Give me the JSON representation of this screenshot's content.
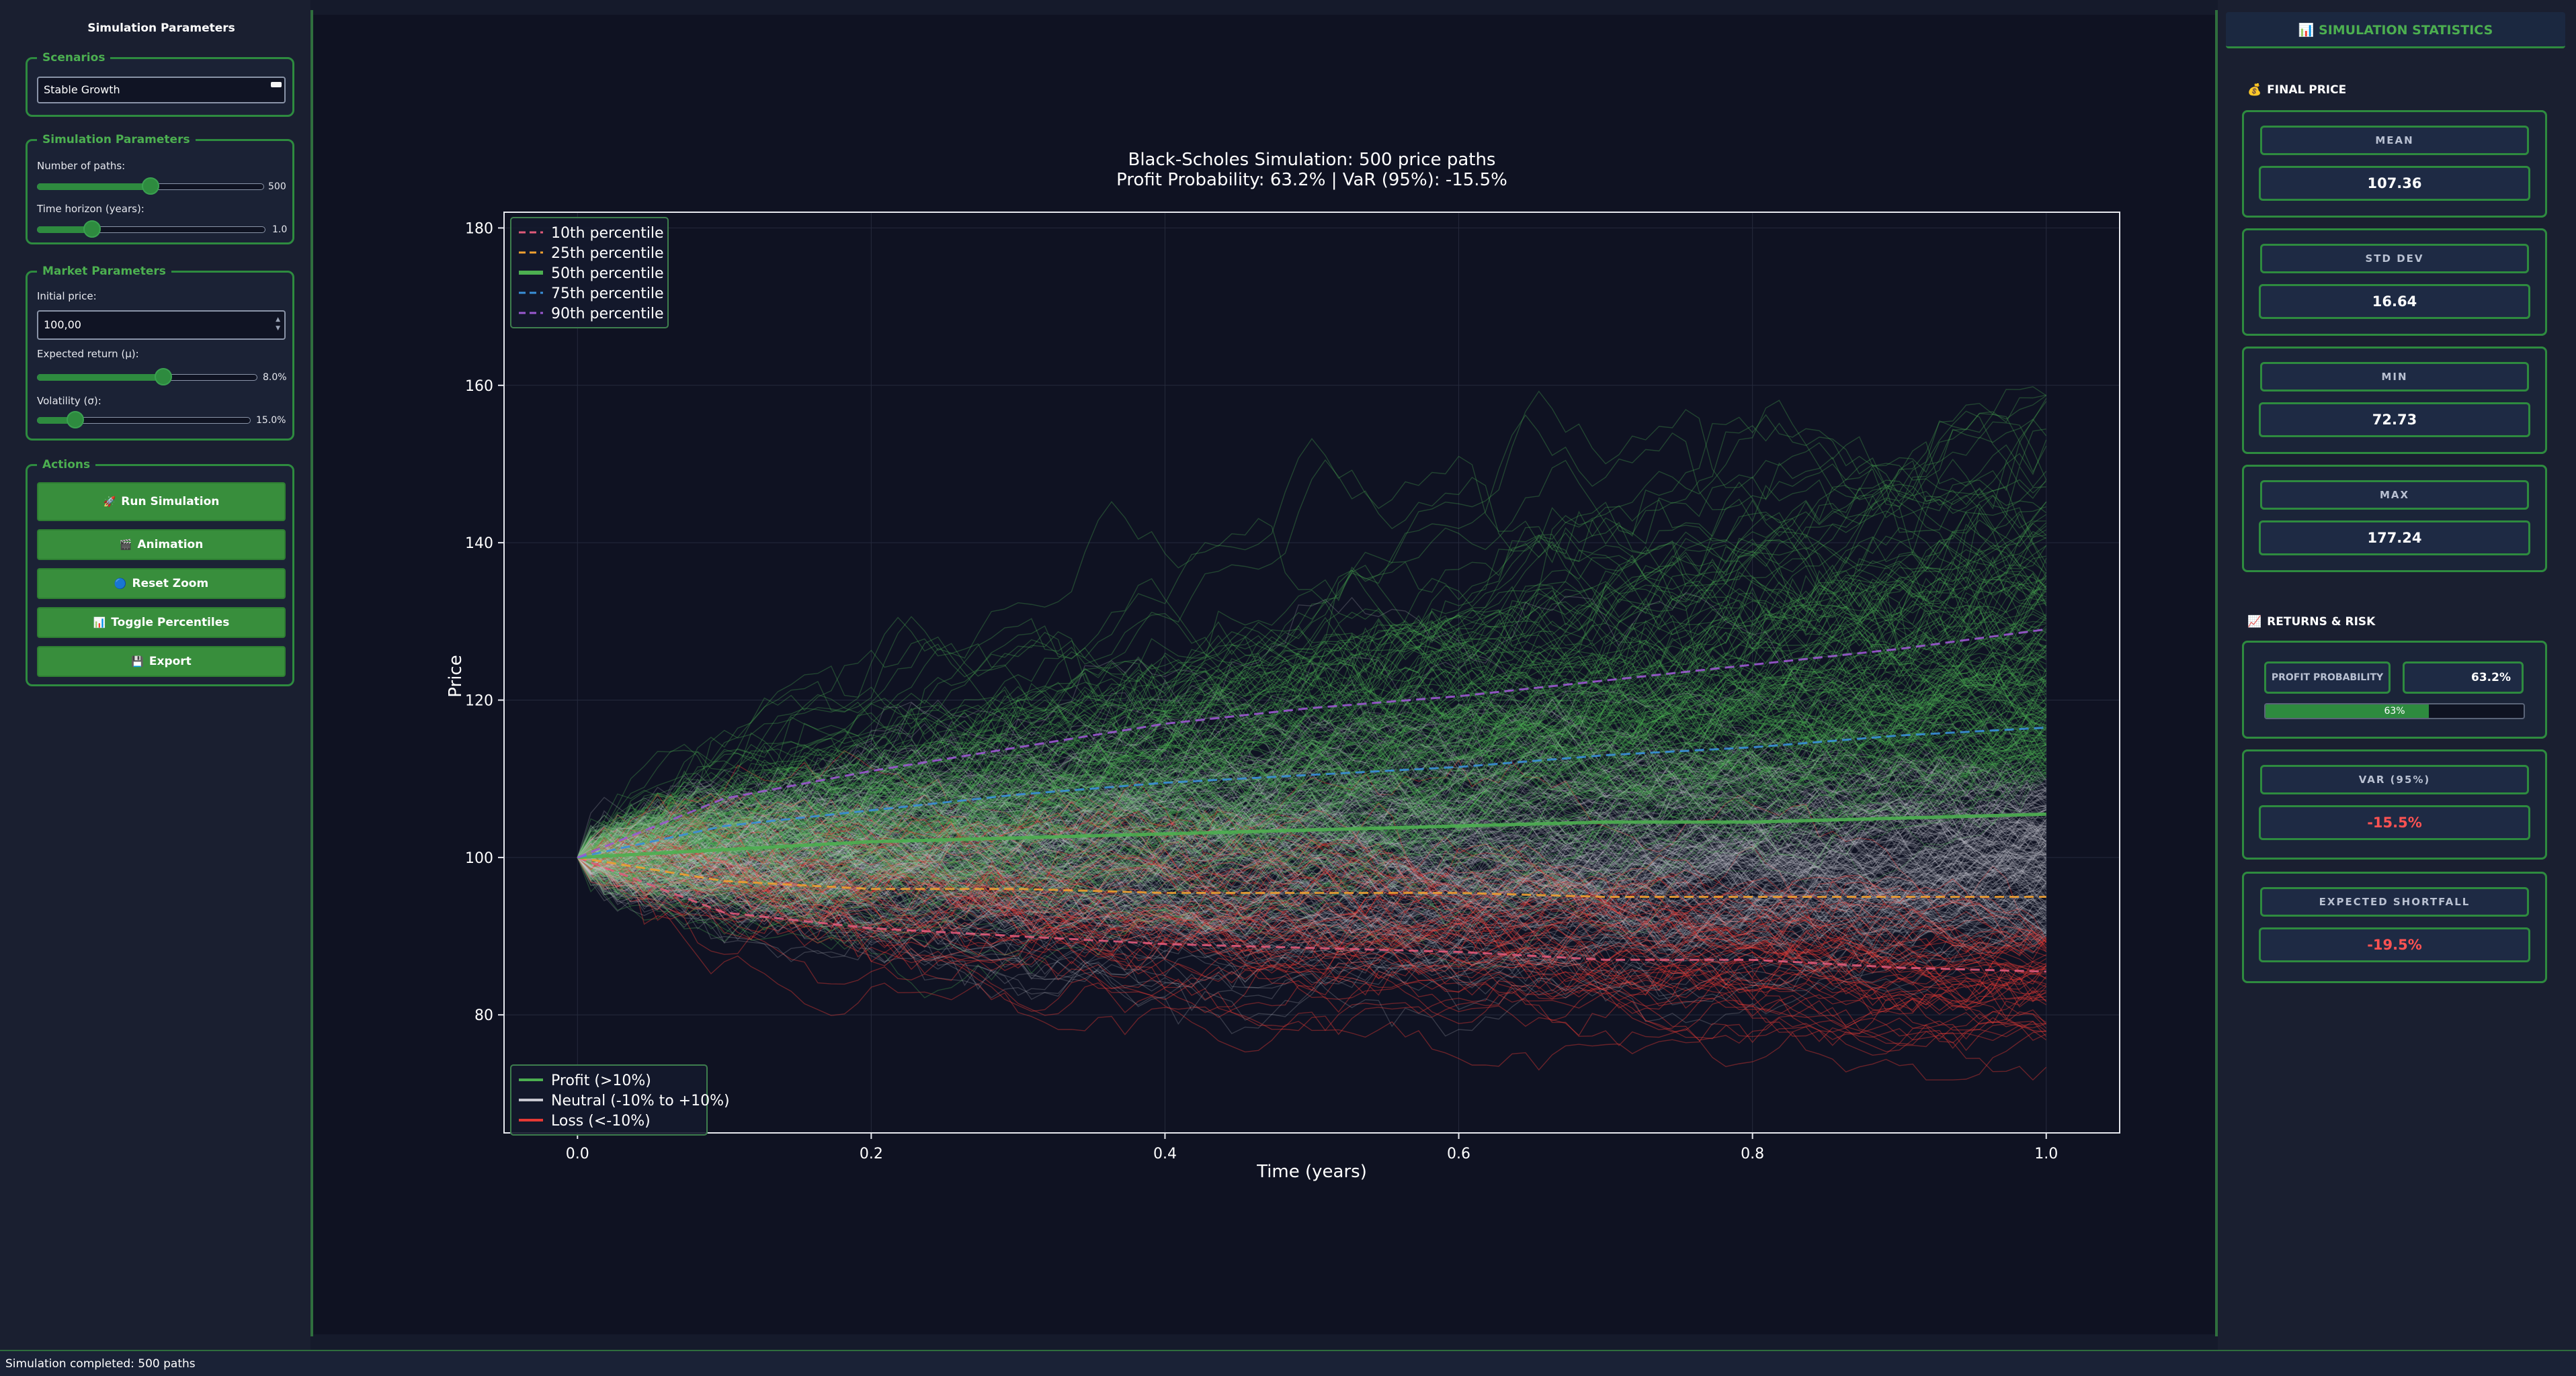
{
  "left_panel": {
    "title": "Simulation Parameters",
    "scenarios": {
      "legend": "Scenarios",
      "selected": "Stable Growth"
    },
    "simulation": {
      "legend": "Simulation Parameters",
      "paths_label": "Number of paths:",
      "paths_value": "500",
      "paths_fraction": 0.5,
      "horizon_label": "Time horizon (years):",
      "horizon_value": "1.0",
      "horizon_fraction": 0.22
    },
    "market": {
      "legend": "Market Parameters",
      "initial_price_label": "Initial price:",
      "initial_price_value": "100,00",
      "return_label": "Expected return (μ):",
      "return_value": "8.0%",
      "return_fraction": 0.58,
      "volatility_label": "Volatility (σ):",
      "volatility_value": "15.0%",
      "volatility_fraction": 0.15
    },
    "actions": {
      "legend": "Actions",
      "buttons": [
        {
          "icon": "🚀",
          "label": "Run Simulation"
        },
        {
          "icon": "🎬",
          "label": "Animation"
        },
        {
          "icon": "🔵",
          "label": "Reset Zoom"
        },
        {
          "icon": "📊",
          "label": "Toggle Percentiles"
        },
        {
          "icon": "💾",
          "label": "Export"
        }
      ]
    }
  },
  "chart_data": {
    "type": "line",
    "title_line1": "Black-Scholes Simulation: 500 price paths",
    "title_line2": "Profit Probability: 63.2% | VaR (95%): -15.5%",
    "xlabel": "Time (years)",
    "ylabel": "Price",
    "xlim": [
      -0.05,
      1.05
    ],
    "ylim": [
      65,
      182
    ],
    "x_ticks": [
      "0.0",
      "0.2",
      "0.4",
      "0.6",
      "0.8",
      "1.0"
    ],
    "y_ticks": [
      "80",
      "100",
      "120",
      "140",
      "160",
      "180"
    ],
    "grid": true,
    "percentile_legend_placement": "top-left",
    "category_legend_placement": "bottom-left",
    "percentiles": [
      {
        "name": "10th percentile",
        "color": "#e05a7a",
        "dash": true,
        "values": [
          [
            0,
            100
          ],
          [
            0.1,
            93
          ],
          [
            0.2,
            91
          ],
          [
            0.3,
            90
          ],
          [
            0.4,
            89
          ],
          [
            0.5,
            88.5
          ],
          [
            0.6,
            88
          ],
          [
            0.7,
            87
          ],
          [
            0.8,
            87
          ],
          [
            0.9,
            86
          ],
          [
            1.0,
            85.5
          ]
        ]
      },
      {
        "name": "25th percentile",
        "color": "#f0a030",
        "dash": true,
        "values": [
          [
            0,
            100
          ],
          [
            0.1,
            97
          ],
          [
            0.2,
            96
          ],
          [
            0.3,
            96
          ],
          [
            0.4,
            95.5
          ],
          [
            0.5,
            95.5
          ],
          [
            0.6,
            95.5
          ],
          [
            0.7,
            95
          ],
          [
            0.8,
            95
          ],
          [
            0.9,
            95
          ],
          [
            1.0,
            95
          ]
        ]
      },
      {
        "name": "50th percentile",
        "color": "#4caf50",
        "dash": false,
        "values": [
          [
            0,
            100
          ],
          [
            0.1,
            101
          ],
          [
            0.2,
            102
          ],
          [
            0.3,
            102.5
          ],
          [
            0.4,
            103
          ],
          [
            0.5,
            103.5
          ],
          [
            0.6,
            104
          ],
          [
            0.7,
            104.5
          ],
          [
            0.8,
            104.5
          ],
          [
            0.9,
            105
          ],
          [
            1.0,
            105.5
          ]
        ]
      },
      {
        "name": "75th percentile",
        "color": "#3a8fd8",
        "dash": true,
        "values": [
          [
            0,
            100
          ],
          [
            0.1,
            104
          ],
          [
            0.2,
            106
          ],
          [
            0.3,
            108
          ],
          [
            0.4,
            109.5
          ],
          [
            0.5,
            110.5
          ],
          [
            0.6,
            111.5
          ],
          [
            0.7,
            113
          ],
          [
            0.8,
            114
          ],
          [
            0.9,
            115.5
          ],
          [
            1.0,
            116.5
          ]
        ]
      },
      {
        "name": "90th percentile",
        "color": "#9b59d0",
        "dash": true,
        "values": [
          [
            0,
            100
          ],
          [
            0.1,
            107.5
          ],
          [
            0.2,
            111
          ],
          [
            0.3,
            114
          ],
          [
            0.4,
            117
          ],
          [
            0.5,
            119
          ],
          [
            0.6,
            120.5
          ],
          [
            0.7,
            122.5
          ],
          [
            0.8,
            124.5
          ],
          [
            0.9,
            126.5
          ],
          [
            1.0,
            129
          ]
        ]
      }
    ],
    "categories_legend": [
      {
        "name": "Profit (>10%)",
        "color": "#4caf50"
      },
      {
        "name": "Neutral (-10% to +10%)",
        "color": "#c8c8d0"
      },
      {
        "name": "Loss (<-10%)",
        "color": "#e53935"
      }
    ],
    "simulated_paths": {
      "count": 500,
      "start": 100,
      "final_mean": 107.36,
      "final_min": 72.73,
      "final_max": 177.24
    }
  },
  "right_panel": {
    "header": {
      "icon": "📊",
      "title": "SIMULATION STATISTICS"
    },
    "final_price": {
      "title": "FINAL PRICE",
      "icon": "💰",
      "stats": [
        {
          "label": "MEAN",
          "value": "107.36"
        },
        {
          "label": "STD DEV",
          "value": "16.64"
        },
        {
          "label": "MIN",
          "value": "72.73"
        },
        {
          "label": "MAX",
          "value": "177.24"
        }
      ]
    },
    "returns_risk": {
      "title": "RETURNS & RISK",
      "icon": "📈",
      "profit_probability": {
        "label": "PROFIT PROBABILITY",
        "value": "63.2%",
        "bar_text": "63%",
        "fraction": 0.632
      },
      "var": {
        "label": "VAR (95%)",
        "value": "-15.5%"
      },
      "expected_shortfall": {
        "label": "EXPECTED SHORTFALL",
        "value": "-19.5%"
      }
    }
  },
  "status_bar": {
    "text": "Simulation completed: 500 paths"
  }
}
